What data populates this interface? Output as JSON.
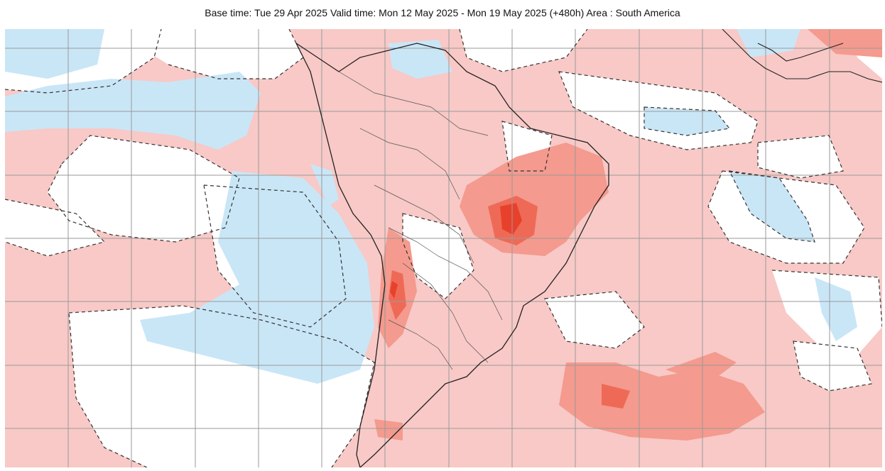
{
  "header": {
    "caption": "Base time: Tue 29 Apr 2025 Valid time: Mon 12 May 2025 - Mon 19 May 2025 (+480h) Area : South America"
  },
  "map": {
    "region": "South America",
    "colors": {
      "warm_light": "#f8c9c6",
      "warm_mid": "#f49a8e",
      "warm_strong": "#ee6a57",
      "warm_max": "#e8412b",
      "neutral": "#ffffff",
      "cool_light": "#c9e6f7",
      "cool_mid": "#a6d4ef",
      "grid": "#9a9a9a",
      "coast": "#222222",
      "contour": "#333333"
    }
  }
}
